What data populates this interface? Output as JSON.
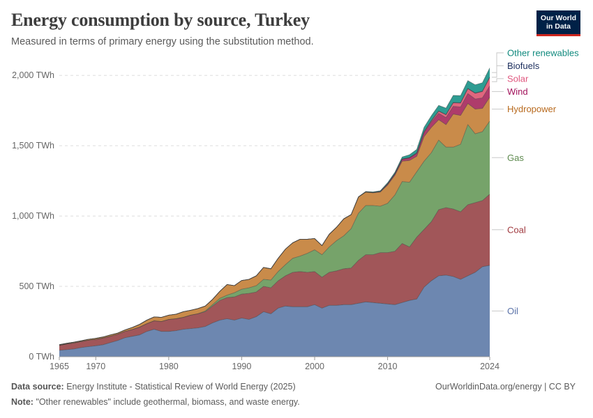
{
  "header": {
    "title": "Energy consumption by source, Turkey",
    "subtitle": "Measured in terms of primary energy using the substitution method."
  },
  "logo": {
    "line1": "Our World",
    "line2": "in Data"
  },
  "footer": {
    "source_label": "Data source:",
    "source_text": "Energy Institute - Statistical Review of World Energy (2025)",
    "note_label": "Note:",
    "note_text": "\"Other renewables\" include geothermal, biomass, and waste energy.",
    "credit": "OurWorldinData.org/energy | CC BY"
  },
  "chart_data": {
    "type": "area",
    "stacked": true,
    "title": "Energy consumption by source, Turkey",
    "xlim": [
      1965,
      2024
    ],
    "ylim": [
      0,
      2100
    ],
    "y_ticks": [
      0,
      500,
      1000,
      1500,
      2000
    ],
    "y_tick_labels": [
      "0 TWh",
      "500 TWh",
      "1,000 TWh",
      "1,500 TWh",
      "2,000 TWh"
    ],
    "x_ticks": [
      1965,
      1970,
      1980,
      1990,
      2000,
      2010,
      2024
    ],
    "x_tick_labels": [
      "1965",
      "1970",
      "1980",
      "1990",
      "2000",
      "2010",
      "2024"
    ],
    "x": [
      1965,
      1966,
      1967,
      1968,
      1969,
      1970,
      1971,
      1972,
      1973,
      1974,
      1975,
      1976,
      1977,
      1978,
      1979,
      1980,
      1981,
      1982,
      1983,
      1984,
      1985,
      1986,
      1987,
      1988,
      1989,
      1990,
      1991,
      1992,
      1993,
      1994,
      1995,
      1996,
      1997,
      1998,
      1999,
      2000,
      2001,
      2002,
      2003,
      2004,
      2005,
      2006,
      2007,
      2008,
      2009,
      2010,
      2011,
      2012,
      2013,
      2014,
      2015,
      2016,
      2017,
      2018,
      2019,
      2020,
      2021,
      2022,
      2023,
      2024
    ],
    "legend_position": "right, inline labels",
    "series": [
      {
        "name": "Oil",
        "color": "#6d87b0",
        "label_color": "#5a72a8",
        "values": [
          45,
          50,
          55,
          65,
          72,
          78,
          85,
          100,
          115,
          135,
          145,
          155,
          180,
          195,
          180,
          180,
          185,
          195,
          200,
          205,
          215,
          240,
          260,
          270,
          260,
          275,
          265,
          285,
          320,
          305,
          345,
          360,
          355,
          355,
          355,
          370,
          345,
          365,
          365,
          370,
          370,
          380,
          390,
          385,
          380,
          375,
          370,
          385,
          400,
          410,
          495,
          540,
          575,
          580,
          570,
          550,
          575,
          600,
          640,
          650
        ]
      },
      {
        "name": "Coal",
        "color": "#a15659",
        "label_color": "#a03a3f",
        "values": [
          35,
          40,
          42,
          42,
          45,
          45,
          47,
          45,
          45,
          45,
          48,
          55,
          55,
          60,
          70,
          85,
          85,
          85,
          95,
          100,
          105,
          120,
          140,
          150,
          165,
          170,
          185,
          175,
          180,
          185,
          195,
          215,
          245,
          250,
          245,
          235,
          220,
          235,
          245,
          255,
          260,
          305,
          335,
          340,
          360,
          365,
          380,
          420,
          380,
          440,
          410,
          420,
          470,
          480,
          480,
          480,
          505,
          495,
          470,
          505
        ]
      },
      {
        "name": "Gas",
        "color": "#76a36a",
        "label_color": "#5e8a4f",
        "values": [
          0,
          0,
          0,
          0,
          0,
          0,
          0,
          0,
          0,
          0,
          0,
          0,
          0,
          0,
          0,
          0,
          0,
          0,
          0,
          0,
          5,
          10,
          15,
          18,
          30,
          35,
          40,
          45,
          50,
          55,
          65,
          80,
          100,
          110,
          135,
          155,
          160,
          180,
          215,
          235,
          280,
          335,
          350,
          350,
          330,
          350,
          400,
          440,
          460,
          465,
          485,
          490,
          495,
          430,
          440,
          480,
          570,
          490,
          490,
          520
        ]
      },
      {
        "name": "Hydropower",
        "color": "#c98b4a",
        "label_color": "#b86a1e",
        "values": [
          5,
          5,
          6,
          6,
          7,
          8,
          8,
          10,
          8,
          10,
          15,
          20,
          25,
          28,
          30,
          30,
          32,
          40,
          35,
          37,
          35,
          37,
          50,
          75,
          50,
          62,
          60,
          70,
          85,
          80,
          95,
          110,
          110,
          120,
          100,
          80,
          65,
          90,
          95,
          120,
          100,
          115,
          95,
          90,
          100,
          130,
          140,
          145,
          155,
          110,
          175,
          180,
          145,
          160,
          235,
          205,
          150,
          175,
          165,
          170
        ]
      },
      {
        "name": "Wind",
        "color": "#ae3c6b",
        "label_color": "#a2125b",
        "values": [
          0,
          0,
          0,
          0,
          0,
          0,
          0,
          0,
          0,
          0,
          0,
          0,
          0,
          0,
          0,
          0,
          0,
          0,
          0,
          0,
          0,
          0,
          0,
          0,
          0,
          0,
          0,
          0,
          0,
          0,
          0,
          0,
          0,
          0,
          0,
          0,
          0,
          0,
          0,
          0,
          0,
          0,
          1,
          2,
          4,
          8,
          10,
          14,
          18,
          20,
          30,
          38,
          45,
          50,
          55,
          60,
          70,
          72,
          75,
          80
        ]
      },
      {
        "name": "Solar",
        "color": "#e0667e",
        "label_color": "#e0567e",
        "values": [
          0,
          0,
          0,
          0,
          0,
          0,
          0,
          0,
          0,
          0,
          0,
          0,
          0,
          0,
          0,
          0,
          0,
          0,
          0,
          0,
          0,
          0,
          0,
          0,
          0,
          0,
          0,
          0,
          0,
          0,
          0,
          0,
          0,
          0,
          0,
          0,
          0,
          0,
          0,
          0,
          0,
          0,
          0,
          0,
          0,
          0,
          0,
          0,
          1,
          2,
          4,
          8,
          15,
          20,
          25,
          28,
          35,
          40,
          45,
          60
        ]
      },
      {
        "name": "Biofuels",
        "color": "#1f3a6e",
        "label_color": "#1d2f5e",
        "values": [
          0,
          0,
          0,
          0,
          0,
          0,
          0,
          0,
          0,
          0,
          0,
          0,
          0,
          0,
          0,
          0,
          0,
          0,
          0,
          0,
          0,
          0,
          0,
          0,
          0,
          0,
          0,
          0,
          0,
          0,
          0,
          0,
          0,
          0,
          0,
          0,
          0,
          0,
          0,
          0,
          0,
          0,
          1,
          1,
          1,
          1,
          2,
          2,
          2,
          2,
          2,
          2,
          2,
          2,
          3,
          3,
          3,
          3,
          3,
          3
        ]
      },
      {
        "name": "Other renewables",
        "color": "#2e9c92",
        "label_color": "#118a7e",
        "values": [
          0,
          0,
          0,
          0,
          0,
          0,
          0,
          0,
          0,
          0,
          0,
          0,
          0,
          0,
          0,
          0,
          0,
          0,
          0,
          0,
          0,
          0,
          0,
          0,
          0,
          0,
          0,
          0,
          0,
          0,
          0,
          0,
          0,
          0,
          0,
          0,
          0,
          1,
          1,
          1,
          1,
          2,
          3,
          4,
          5,
          8,
          10,
          14,
          20,
          25,
          30,
          35,
          40,
          45,
          50,
          50,
          55,
          58,
          60,
          65
        ]
      }
    ]
  }
}
